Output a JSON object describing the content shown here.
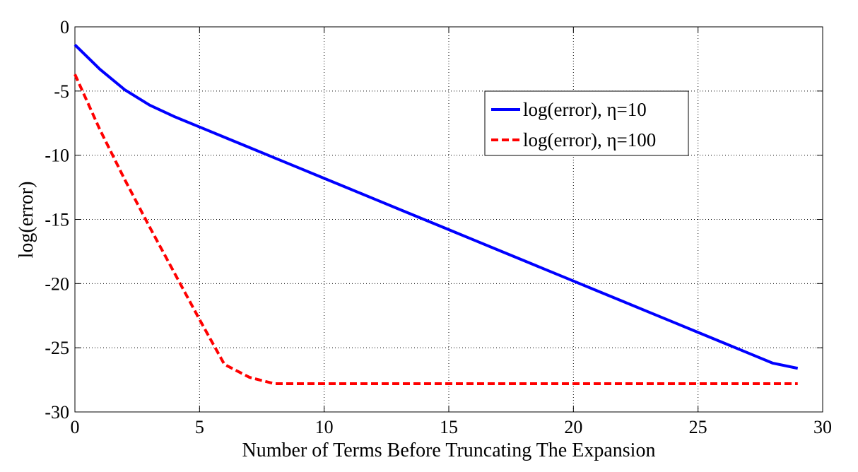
{
  "chart_data": {
    "type": "line",
    "title": "",
    "xlabel": "Number of Terms Before Truncating The Expansion",
    "ylabel": "log(error)",
    "xlim": [
      0,
      30
    ],
    "ylim": [
      -30,
      0
    ],
    "xticks": [
      "0",
      "5",
      "10",
      "15",
      "20",
      "25",
      "30"
    ],
    "yticks": [
      "0",
      "-5",
      "-10",
      "-15",
      "-20",
      "-25",
      "-30"
    ],
    "grid": true,
    "legend_position": "upper-right",
    "series": [
      {
        "name": "log(error), η=10",
        "color": "#0000ff",
        "style": "solid",
        "x": [
          0,
          1,
          2,
          3,
          4,
          5,
          6,
          7,
          8,
          9,
          10,
          11,
          12,
          13,
          14,
          15,
          16,
          17,
          18,
          19,
          20,
          21,
          22,
          23,
          24,
          25,
          26,
          27,
          28,
          29
        ],
        "y": [
          -1.4,
          -3.3,
          -4.9,
          -6.1,
          -7.0,
          -7.8,
          -8.6,
          -9.4,
          -10.2,
          -11.0,
          -11.8,
          -12.6,
          -13.4,
          -14.2,
          -15.0,
          -15.8,
          -16.6,
          -17.4,
          -18.2,
          -19.0,
          -19.8,
          -20.6,
          -21.4,
          -22.2,
          -23.0,
          -23.8,
          -24.6,
          -25.4,
          -26.2,
          -26.6
        ]
      },
      {
        "name": "log(error), η=100",
        "color": "#ff0000",
        "style": "dashed",
        "x": [
          0,
          1,
          2,
          3,
          4,
          5,
          6,
          7,
          8,
          9,
          10,
          11,
          12,
          13,
          14,
          15,
          16,
          17,
          18,
          19,
          20,
          21,
          22,
          23,
          24,
          25,
          26,
          27,
          28,
          29
        ],
        "y": [
          -3.7,
          -8.0,
          -11.9,
          -15.6,
          -19.2,
          -22.8,
          -26.3,
          -27.3,
          -27.8,
          -27.8,
          -27.8,
          -27.8,
          -27.8,
          -27.8,
          -27.8,
          -27.8,
          -27.8,
          -27.8,
          -27.8,
          -27.8,
          -27.8,
          -27.8,
          -27.8,
          -27.8,
          -27.8,
          -27.8,
          -27.8,
          -27.8,
          -27.8,
          -27.8
        ]
      }
    ]
  }
}
